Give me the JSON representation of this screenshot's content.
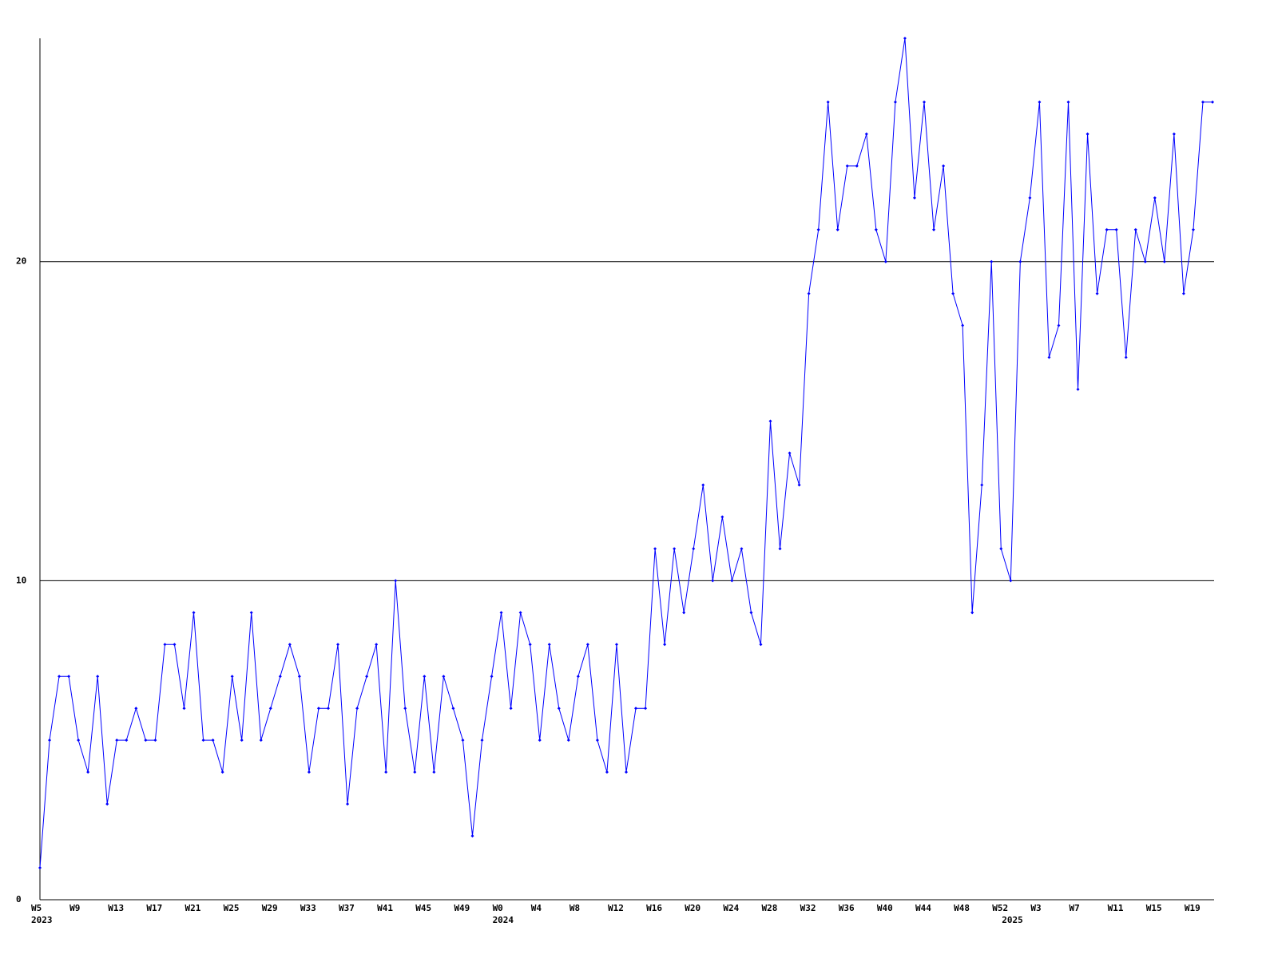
{
  "chart_data": {
    "type": "line",
    "categories": [
      "W5",
      null,
      null,
      null,
      "W9",
      null,
      null,
      null,
      "W13",
      null,
      null,
      null,
      "W17",
      null,
      null,
      null,
      "W21",
      null,
      null,
      null,
      "W25",
      null,
      null,
      null,
      "W29",
      null,
      null,
      null,
      "W33",
      null,
      null,
      null,
      "W37",
      null,
      null,
      null,
      "W41",
      null,
      null,
      null,
      "W45",
      null,
      null,
      null,
      "W49",
      null,
      null,
      null,
      "W0",
      null,
      null,
      null,
      "W4",
      null,
      null,
      null,
      "W8",
      null,
      null,
      null,
      "W12",
      null,
      null,
      null,
      "W16",
      null,
      null,
      null,
      "W20",
      null,
      null,
      null,
      "W24",
      null,
      null,
      null,
      "W28",
      null,
      null,
      null,
      "W32",
      null,
      null,
      null,
      "W36",
      null,
      null,
      null,
      "W40",
      null,
      null,
      null,
      "W44",
      null,
      null,
      null,
      "W48",
      null,
      null,
      null,
      "W52",
      null,
      null,
      null,
      "W3",
      null,
      null,
      null,
      "W7",
      null,
      null,
      null,
      "W11",
      null,
      null,
      null,
      "W15",
      null,
      null,
      null,
      "W19",
      null,
      null
    ],
    "years": [
      "2023",
      null,
      null,
      null,
      null,
      null,
      null,
      null,
      null,
      null,
      null,
      null,
      null,
      null,
      null,
      null,
      null,
      null,
      null,
      null,
      null,
      null,
      null,
      null,
      null,
      null,
      null,
      null,
      null,
      null,
      null,
      null,
      null,
      null,
      null,
      null,
      null,
      null,
      null,
      null,
      null,
      null,
      null,
      null,
      null,
      null,
      null,
      null,
      "2024",
      null,
      null,
      null,
      null,
      null,
      null,
      null,
      null,
      null,
      null,
      null,
      null,
      null,
      null,
      null,
      null,
      null,
      null,
      null,
      null,
      null,
      null,
      null,
      null,
      null,
      null,
      null,
      null,
      null,
      null,
      null,
      null,
      null,
      null,
      null,
      null,
      null,
      null,
      null,
      null,
      null,
      null,
      null,
      null,
      null,
      null,
      null,
      null,
      null,
      null,
      null,
      null,
      "2025",
      null,
      null,
      null,
      null,
      null,
      null,
      null,
      null,
      null,
      null,
      null,
      null,
      null,
      null,
      null,
      null,
      null,
      null,
      null,
      null,
      null
    ],
    "series": [
      {
        "color": "#0000ff",
        "values": [
          1,
          5,
          7,
          7,
          5,
          4,
          7,
          3,
          5,
          5,
          6,
          5,
          5,
          8,
          8,
          6,
          9,
          5,
          5,
          4,
          7,
          5,
          9,
          5,
          6,
          7,
          8,
          7,
          4,
          6,
          6,
          8,
          3,
          6,
          7,
          8,
          4,
          10,
          6,
          4,
          7,
          4,
          7,
          6,
          5,
          2,
          5,
          7,
          9,
          6,
          9,
          8,
          5,
          8,
          6,
          5,
          7,
          8,
          5,
          4,
          8,
          4,
          6,
          6,
          11,
          8,
          11,
          9,
          11,
          13,
          10,
          12,
          10,
          11,
          9,
          8,
          15,
          11,
          14,
          13,
          19,
          21,
          25,
          21,
          23,
          23,
          24,
          21,
          20,
          25,
          27,
          22,
          25,
          21,
          23,
          19,
          18,
          9,
          13,
          20,
          11,
          10,
          20,
          22,
          25,
          17,
          18,
          25,
          16,
          24,
          19,
          21,
          21,
          17,
          21,
          20,
          22,
          20,
          24,
          19,
          21,
          25,
          25
        ]
      }
    ],
    "ylim": [
      0,
      27
    ],
    "yticks": [
      0,
      10,
      20
    ],
    "grid": true
  }
}
